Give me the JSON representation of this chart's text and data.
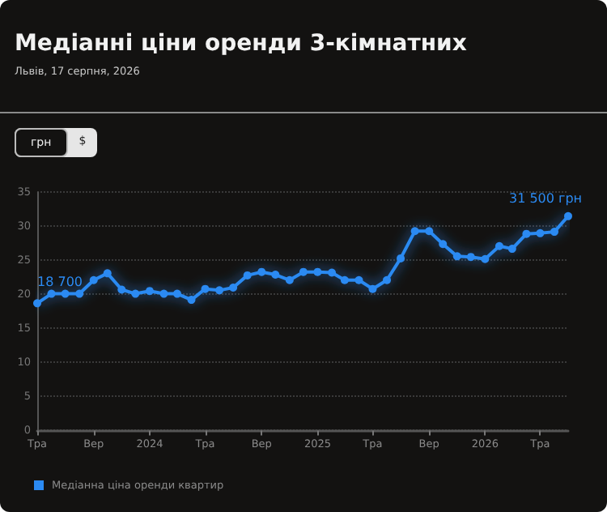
{
  "chart_data": {
    "type": "line",
    "title": "Медіанні ціни оренди 3-кімнатних",
    "subtitle": "Львів, 17 серпня, 2026",
    "annotations": [
      "грн",
      "$",
      {
        "text": "18 700",
        "x": "2023-05",
        "y": 18.7
      },
      {
        "text": "31 500 грн",
        "x": "2026-07",
        "y": 31.5
      }
    ],
    "x": [
      "2023-05",
      "2023-06",
      "2023-07",
      "2023-08",
      "2023-09",
      "2023-10",
      "2023-11",
      "2023-12",
      "2024-01",
      "2024-02",
      "2024-03",
      "2024-04",
      "2024-05",
      "2024-06",
      "2024-07",
      "2024-08",
      "2024-09",
      "2024-10",
      "2024-11",
      "2024-12",
      "2025-01",
      "2025-02",
      "2025-03",
      "2025-04",
      "2025-05",
      "2025-06",
      "2025-07",
      "2025-08",
      "2025-09",
      "2025-10",
      "2025-11",
      "2025-12",
      "2026-01",
      "2026-02",
      "2026-03",
      "2026-04",
      "2026-05",
      "2026-06",
      "2026-07"
    ],
    "series": [
      {
        "name": "Медіанна ціна оренди квартир",
        "color": "#2b8af2",
        "values": [
          18.7,
          20.1,
          20.1,
          20.1,
          22.1,
          23.1,
          20.7,
          20.1,
          20.5,
          20.1,
          20.1,
          19.2,
          20.8,
          20.6,
          21.0,
          22.8,
          23.3,
          22.9,
          22.1,
          23.3,
          23.3,
          23.2,
          22.1,
          22.1,
          20.8,
          22.1,
          25.3,
          29.3,
          29.3,
          27.4,
          25.6,
          25.5,
          25.2,
          27.1,
          26.7,
          28.9,
          29.0,
          29.2,
          31.5
        ]
      }
    ],
    "xlim": [
      "2023-05",
      "2026-07"
    ],
    "xticks": [
      {
        "value": "2023-05",
        "label": "Тра"
      },
      {
        "value": "2023-09",
        "label": "Вер"
      },
      {
        "value": "2024-01",
        "label": "2024"
      },
      {
        "value": "2024-05",
        "label": "Тра"
      },
      {
        "value": "2024-09",
        "label": "Вер"
      },
      {
        "value": "2025-01",
        "label": "2025"
      },
      {
        "value": "2025-05",
        "label": "Тра"
      },
      {
        "value": "2025-09",
        "label": "Вер"
      },
      {
        "value": "2026-01",
        "label": "2026"
      },
      {
        "value": "2026-05",
        "label": "Тра"
      }
    ],
    "ylim": [
      0,
      35
    ],
    "yticks": [
      0,
      5,
      10,
      15,
      20,
      25,
      30,
      35
    ],
    "grid": "y",
    "legend": "bottom left",
    "marker": "circle",
    "line_style": "solid"
  }
}
